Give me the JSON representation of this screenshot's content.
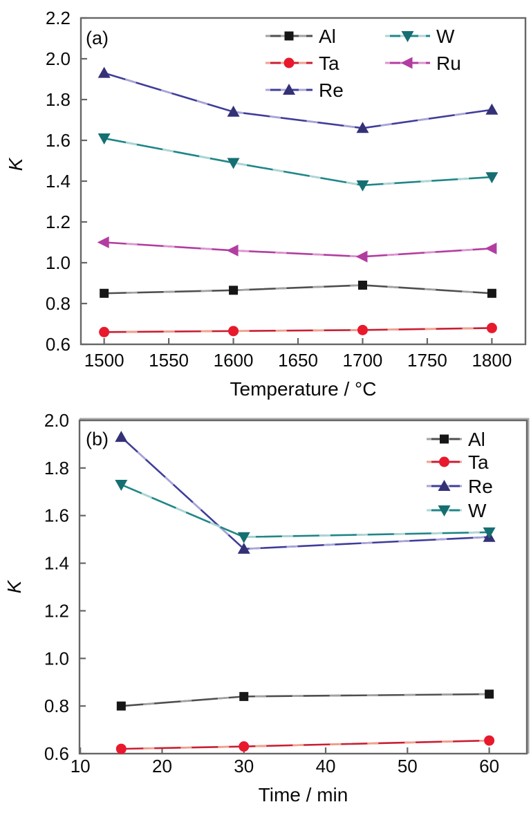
{
  "page": {
    "background": "#ffffff"
  },
  "chart_data": [
    {
      "id": "a",
      "type": "line",
      "panel_label": "(a)",
      "title": "",
      "xlabel": "Temperature / °C",
      "ylabel": "K",
      "ylabel_italic": true,
      "xlim": [
        1482,
        1826
      ],
      "ylim": [
        0.6,
        2.2
      ],
      "xticks": [
        1500,
        1550,
        1600,
        1650,
        1700,
        1750,
        1800
      ],
      "xtick_labels": [
        "1500",
        "1550",
        "1600",
        "1650",
        "1700",
        "1750",
        "1800"
      ],
      "yticks": [
        0.6,
        0.8,
        1.0,
        1.2,
        1.4,
        1.6,
        1.8,
        2.0,
        2.2
      ],
      "ytick_labels": [
        "0.6",
        "0.8",
        "1.0",
        "1.2",
        "1.4",
        "1.6",
        "1.8",
        "2.0",
        "2.2"
      ],
      "grid": false,
      "legend_position": "top-center-two-columns",
      "x": [
        1500,
        1600,
        1700,
        1800
      ],
      "series": [
        {
          "name": "Al",
          "marker": "square",
          "marker_color": "#161616",
          "line_color": "#4f4f4f",
          "line_tint": "#a2a2a2",
          "values": [
            0.85,
            0.865,
            0.89,
            0.85
          ]
        },
        {
          "name": "Ta",
          "marker": "circle",
          "marker_color": "#e8192d",
          "line_color": "#c81f34",
          "line_tint": "#f2a08b",
          "values": [
            0.66,
            0.665,
            0.67,
            0.68
          ]
        },
        {
          "name": "Re",
          "marker": "triangle-up",
          "marker_color": "#343176",
          "line_color": "#3f3d99",
          "line_tint": "#a9a5d8",
          "values": [
            1.93,
            1.74,
            1.66,
            1.75
          ]
        },
        {
          "name": "W",
          "marker": "triangle-down",
          "marker_color": "#156f72",
          "line_color": "#1f8687",
          "line_tint": "#aed6d4",
          "values": [
            1.61,
            1.49,
            1.38,
            1.42
          ]
        },
        {
          "name": "Ru",
          "marker": "triangle-left",
          "marker_color": "#b23da1",
          "line_color": "#b23da1",
          "line_tint": "#dd95cd",
          "values": [
            1.1,
            1.06,
            1.03,
            1.07
          ]
        }
      ]
    },
    {
      "id": "b",
      "type": "line",
      "panel_label": "(b)",
      "title": "",
      "xlabel": "Time / min",
      "ylabel": "K",
      "ylabel_italic": true,
      "xlim": [
        9.9,
        64.6
      ],
      "ylim": [
        0.6,
        2.0
      ],
      "xticks": [
        10,
        20,
        30,
        40,
        50,
        60
      ],
      "xtick_labels": [
        "10",
        "20",
        "30",
        "40",
        "50",
        "60"
      ],
      "yticks": [
        0.6,
        0.8,
        1.0,
        1.2,
        1.4,
        1.6,
        1.8,
        2.0
      ],
      "ytick_labels": [
        "0.6",
        "0.8",
        "1.0",
        "1.2",
        "1.4",
        "1.6",
        "1.8",
        "2.0"
      ],
      "grid": false,
      "legend_position": "top-right-single-column",
      "x": [
        15,
        30,
        60
      ],
      "series": [
        {
          "name": "Al",
          "marker": "square",
          "marker_color": "#161616",
          "line_color": "#4f4f4f",
          "line_tint": "#a2a2a2",
          "values": [
            0.8,
            0.84,
            0.85
          ]
        },
        {
          "name": "Ta",
          "marker": "circle",
          "marker_color": "#e8192d",
          "line_color": "#c81f34",
          "line_tint": "#f2a08b",
          "values": [
            0.62,
            0.63,
            0.655
          ]
        },
        {
          "name": "Re",
          "marker": "triangle-up",
          "marker_color": "#343176",
          "line_color": "#3f3d99",
          "line_tint": "#a9a5d8",
          "values": [
            1.93,
            1.46,
            1.51
          ]
        },
        {
          "name": "W",
          "marker": "triangle-down",
          "marker_color": "#156f72",
          "line_color": "#1f8687",
          "line_tint": "#aed6d4",
          "values": [
            1.73,
            1.51,
            1.53
          ]
        }
      ]
    }
  ],
  "style_colors": {
    "frame": "#666666",
    "frame_light": "#a9a9a9",
    "text": "#0a0a0a"
  }
}
